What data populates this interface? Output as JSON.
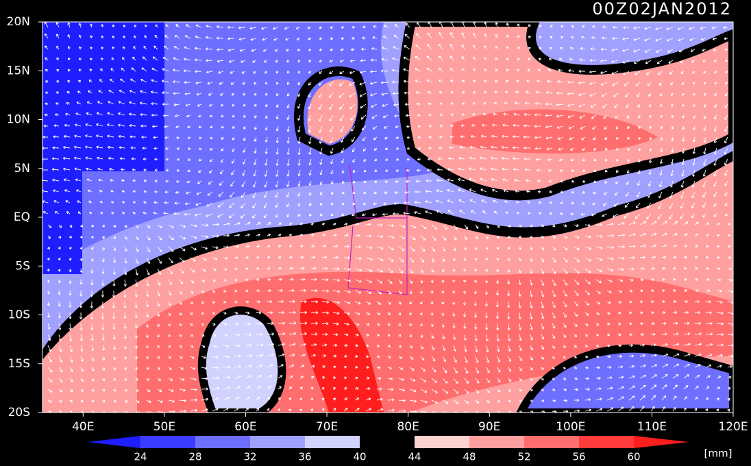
{
  "title": "00Z02JAN2012",
  "map": {
    "lat_labels": [
      "20N",
      "15N",
      "10N",
      "5N",
      "EQ",
      "5S",
      "10S",
      "15S",
      "20S"
    ],
    "lon_labels": [
      "40E",
      "50E",
      "60E",
      "70E",
      "80E",
      "90E",
      "100E",
      "110E",
      "120E"
    ]
  },
  "colorbar": {
    "levels": [
      24,
      28,
      32,
      36,
      40,
      44,
      48,
      52,
      56,
      60
    ],
    "colors": [
      "#1e1eff",
      "#3c3cff",
      "#6e6eff",
      "#a0a0ff",
      "#d2d2ff",
      "#000000",
      "#ffd2d2",
      "#ffa0a0",
      "#ff6e6e",
      "#ff3c3c",
      "#ff1e1e"
    ],
    "unit": "[mm]"
  }
}
